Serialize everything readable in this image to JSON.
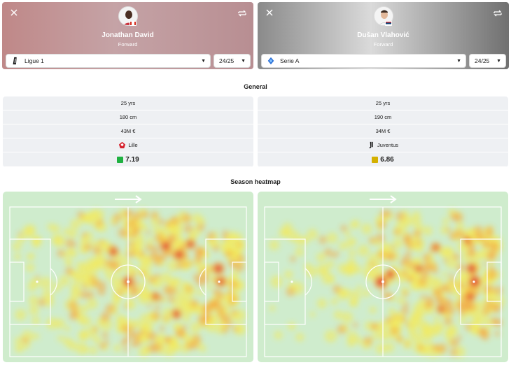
{
  "players": [
    {
      "name": "Jonathan David",
      "position": "Forward",
      "flag": "canada-flag",
      "league": "Ligue 1",
      "league_icon": "ligue1-icon",
      "season": "24/25",
      "stats": {
        "age": "25 yrs",
        "height": "180 cm",
        "value": "43M €",
        "club": "Lille",
        "club_icon": "lille-crest-icon",
        "rating": "7.19",
        "rating_color": "#1fb141"
      }
    },
    {
      "name": "Dušan Vlahović",
      "position": "Forward",
      "flag": "serbia-flag",
      "league": "Serie A",
      "league_icon": "serie-a-icon",
      "season": "24/25",
      "stats": {
        "age": "25 yrs",
        "height": "190 cm",
        "value": "34M €",
        "club": "Juventus",
        "club_icon": "juventus-crest-icon",
        "rating": "6.86",
        "rating_color": "#d4b000"
      }
    }
  ],
  "sections": {
    "general": "General",
    "heatmap": "Season heatmap"
  },
  "colors": {
    "pitch": "#cfeccd",
    "stat_row": "#eef0f3",
    "card_left": "#c09a9c",
    "card_right": "#9a9a9a"
  },
  "heatmaps": [
    {
      "hotspots": "midfield, attacking third central, centre-spot, right box"
    },
    {
      "hotspots": "centre-spot, right half, opposition box"
    }
  ]
}
